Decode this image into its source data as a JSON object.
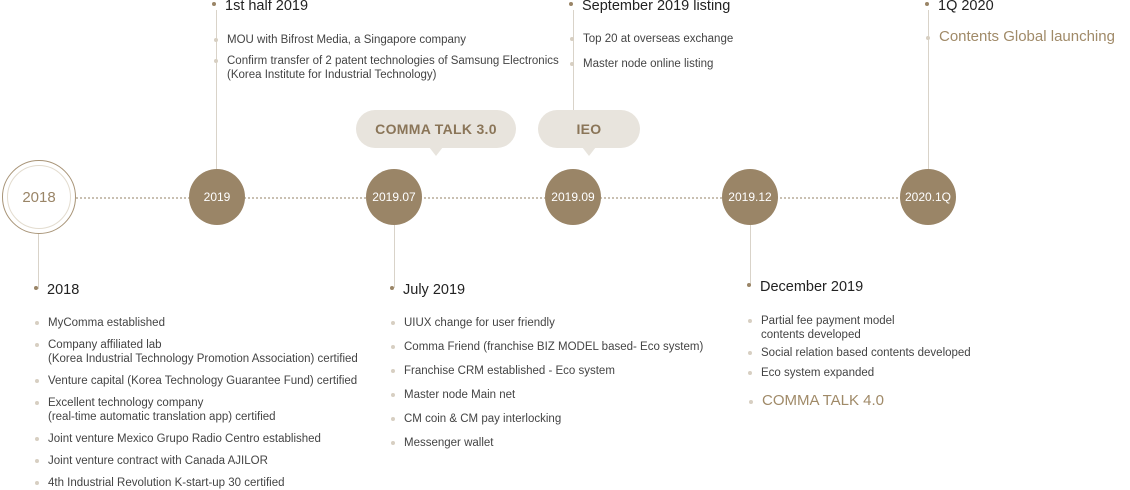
{
  "timeline": {
    "nodes": [
      "2018",
      "2019",
      "2019.07",
      "2019.09",
      "2019.12",
      "2020.1Q"
    ],
    "bubbles": [
      "COMMA TALK 3.0",
      "IEO"
    ]
  },
  "blocks": {
    "b2018": {
      "title": "2018",
      "items": [
        "MyComma established",
        "Company affiliated lab",
        "(Korea Industrial Technology Promotion Association) certified",
        "Venture capital (Korea Technology Guarantee Fund) certified",
        "Excellent technology company",
        "(real-time automatic translation app) certified",
        "Joint venture Mexico Grupo Radio Centro established",
        "Joint venture contract with Canada AJILOR",
        "4th Industrial Revolution K-start-up 30 certified"
      ]
    },
    "h2019": {
      "title": "1st half 2019",
      "items": [
        "MOU with Bifrost Media, a Singapore company",
        "Confirm transfer of 2 patent technologies of Samsung Electronics",
        "(Korea Institute for Industrial Technology)"
      ]
    },
    "jul2019": {
      "title": "July 2019",
      "items": [
        "UIUX change for user friendly",
        "Comma Friend (franchise BIZ MODEL based- Eco system)",
        "Franchise CRM established - Eco system",
        "Master node Main net",
        "CM coin & CM pay interlocking",
        "Messenger wallet"
      ]
    },
    "sep2019": {
      "title": "September 2019 listing",
      "items": [
        "Top 20 at overseas exchange",
        "Master node online listing"
      ]
    },
    "dec2019": {
      "title": "December 2019",
      "items": [
        "Partial fee payment model",
        "contents developed",
        "Social relation based contents developed",
        "Eco system expanded"
      ],
      "highlight": "COMMA TALK 4.0"
    },
    "q2020": {
      "title": "1Q 2020",
      "highlight": "Contents Global launching"
    }
  },
  "colors": {
    "accent": "#9a8567",
    "bubble_bg": "#e8e4dd",
    "highlight_text": "#a08a68"
  }
}
